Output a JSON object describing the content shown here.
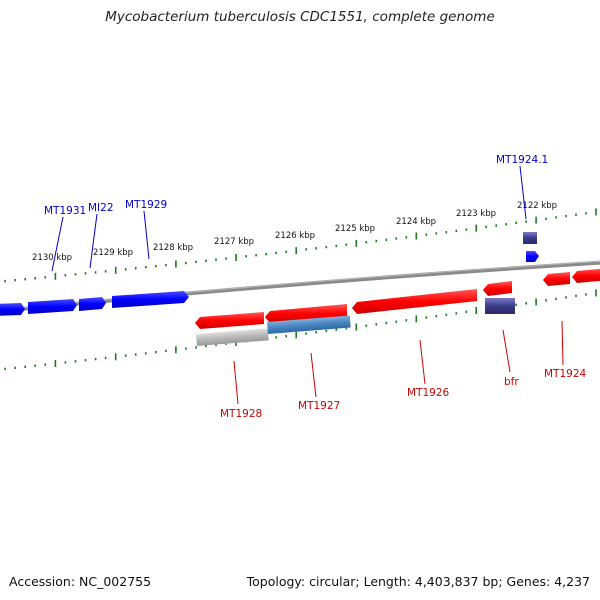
{
  "title": "Mycobacterium tuberculosis CDC1551, complete genome",
  "footer": {
    "accession": "Accession: NC_002755",
    "summary": "Topology: circular; Length: 4,403,837 bp; Genes: 4,237"
  },
  "scale": {
    "unit": "kbp",
    "ticks": [
      "2130 kbp",
      "2129 kbp",
      "2128 kbp",
      "2127 kbp",
      "2126 kbp",
      "2125 kbp",
      "2124 kbp",
      "2123 kbp",
      "2122 kbp"
    ]
  },
  "genes": {
    "forward_labels": [
      "MT1931",
      "MI22",
      "MT1929",
      "MT1924.1"
    ],
    "reverse_labels": [
      "MT1928",
      "MT1927",
      "MT1926",
      "bfr",
      "MT1924"
    ]
  },
  "colors": {
    "forward_gene": "#0000ff",
    "reverse_gene": "#ff0000",
    "highlight_reverse": "#4a86c0",
    "grey_gene": "#b0b0b0",
    "rna_gene": "#3b3b88",
    "backbone": "#808080",
    "tick_mark": "#1f7a1f"
  }
}
